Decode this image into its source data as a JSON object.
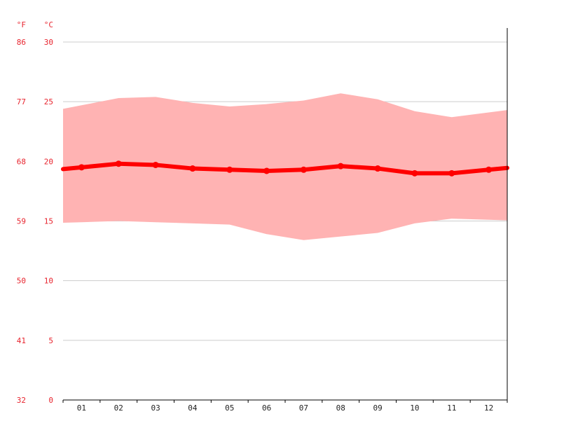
{
  "chart_data": {
    "type": "line",
    "unit_labels": {
      "fahrenheit": "°F",
      "celsius": "°C"
    },
    "categories": [
      "01",
      "02",
      "03",
      "04",
      "05",
      "06",
      "07",
      "08",
      "09",
      "10",
      "11",
      "12"
    ],
    "ylim": [
      0,
      30
    ],
    "y_ticks_celsius": [
      "0",
      "5",
      "10",
      "15",
      "20",
      "25",
      "30"
    ],
    "y_ticks_fahrenheit": [
      "32",
      "41",
      "50",
      "59",
      "68",
      "77",
      "86"
    ],
    "grid": true,
    "series": [
      {
        "role": "mean",
        "values": [
          19.5,
          19.8,
          19.7,
          19.4,
          19.3,
          19.2,
          19.3,
          19.6,
          19.4,
          19.0,
          19.0,
          19.3
        ]
      },
      {
        "role": "max",
        "values": [
          24.7,
          25.3,
          25.4,
          24.9,
          24.6,
          24.8,
          25.1,
          25.7,
          25.2,
          24.2,
          23.7,
          24.1
        ]
      },
      {
        "role": "min",
        "values": [
          14.9,
          15.0,
          14.9,
          14.8,
          14.7,
          13.9,
          13.4,
          13.7,
          14.0,
          14.8,
          15.2,
          15.1
        ]
      }
    ],
    "colors": {
      "mean_line": "#ff0000",
      "range_band": "#ffb3b3",
      "grid": "#cccccc",
      "axis_text": "#e8252f",
      "month_text": "#222222",
      "axis_line": "#000000"
    }
  }
}
